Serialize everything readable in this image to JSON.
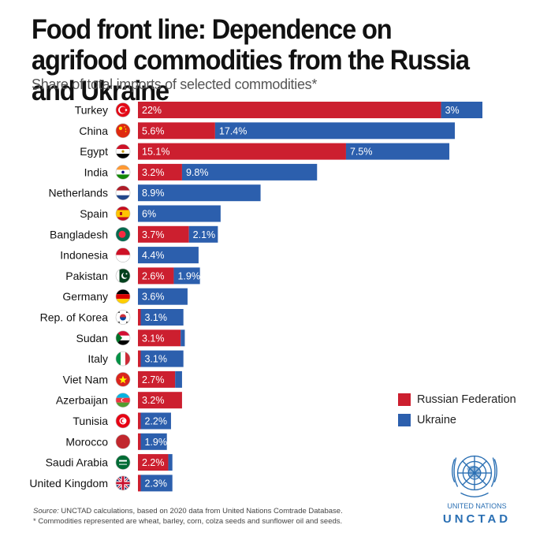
{
  "header": {
    "title": "Food front line: Dependence on agrifood commodities from the Russia and Ukraine",
    "subtitle": "Share of total imports of selected commodities*"
  },
  "chart_data": {
    "type": "bar",
    "orientation": "horizontal",
    "stacked": true,
    "categories": [
      "Turkey",
      "China",
      "Egypt",
      "India",
      "Netherlands",
      "Spain",
      "Bangladesh",
      "Indonesia",
      "Pakistan",
      "Germany",
      "Rep. of Korea",
      "Sudan",
      "Italy",
      "Viet Nam",
      "Azerbaijan",
      "Tunisia",
      "Morocco",
      "Saudi Arabia",
      "United Kingdom"
    ],
    "flags": [
      "turkey-flag-icon",
      "china-flag-icon",
      "egypt-flag-icon",
      "india-flag-icon",
      "netherlands-flag-icon",
      "spain-flag-icon",
      "bangladesh-flag-icon",
      "indonesia-flag-icon",
      "pakistan-flag-icon",
      "germany-flag-icon",
      "south-korea-flag-icon",
      "sudan-flag-icon",
      "italy-flag-icon",
      "vietnam-flag-icon",
      "azerbaijan-flag-icon",
      "tunisia-flag-icon",
      "morocco-flag-icon",
      "saudi-arabia-flag-icon",
      "united-kingdom-flag-icon"
    ],
    "series": [
      {
        "name": "Russian Federation",
        "color": "#cc1f2f",
        "values": [
          22,
          5.6,
          15.1,
          3.2,
          0,
          0,
          3.7,
          0,
          2.6,
          0,
          0.2,
          3.1,
          0.2,
          2.7,
          3.2,
          0.2,
          0.2,
          2.2,
          0.2
        ],
        "labels": [
          "22%",
          "5.6%",
          "15.1%",
          "3.2%",
          "",
          "",
          "3.7%",
          "",
          "2.6%",
          "",
          "",
          "3.1%",
          "",
          "2.7%",
          "3.2%",
          "",
          "",
          "2.2%",
          ""
        ]
      },
      {
        "name": "Ukraine",
        "color": "#2c5fad",
        "values": [
          3,
          17.4,
          7.5,
          9.8,
          8.9,
          6,
          2.1,
          4.4,
          1.9,
          3.6,
          3.1,
          0.3,
          3.1,
          0.5,
          0,
          2.2,
          1.9,
          0.3,
          2.3
        ],
        "labels": [
          "3%",
          "17.4%",
          "7.5%",
          "9.8%",
          "8.9%",
          "6%",
          "2.1%",
          "4.4%",
          "1.9%",
          "3.6%",
          "3.1%",
          "",
          "3.1%",
          "",
          "",
          "2.2%",
          "1.9%",
          "",
          "2.3%"
        ]
      }
    ],
    "xlim": [
      0,
      25.8
    ],
    "grid": false,
    "legend_position": "right"
  },
  "legend": {
    "russia": "Russian Federation",
    "ukraine": "Ukraine"
  },
  "footer": {
    "source_prefix": "Source:",
    "source": "UNCTAD calculations, based on 2020 data from United Nations Comtrade Database.",
    "note": "* Commodities represented are wheat, barley, corn, colza seeds and sunflower oil and seeds."
  },
  "branding": {
    "org_name": "UNITED NATIONS",
    "org_abbr": "UNCTAD",
    "logo": "un-emblem-icon"
  }
}
